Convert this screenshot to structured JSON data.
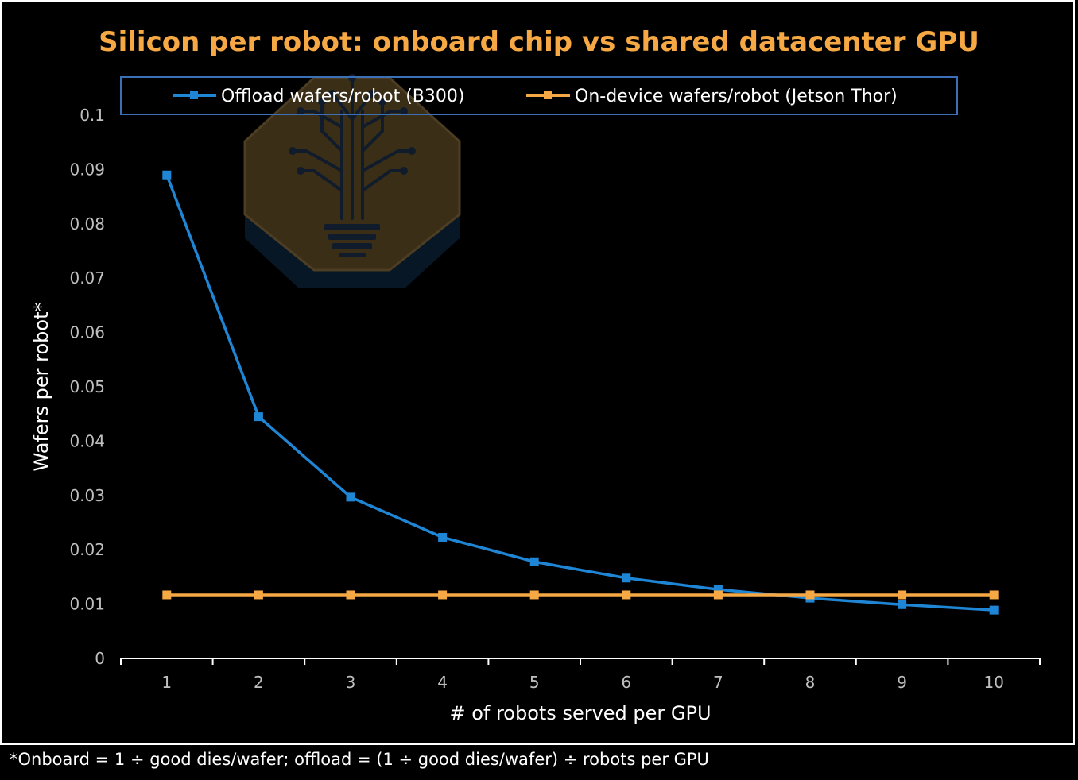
{
  "chart_data": {
    "type": "line",
    "title": "Silicon per robot: onboard chip vs shared datacenter GPU",
    "xlabel": "# of robots served per GPU",
    "ylabel": "Wafers per robot*",
    "categories": [
      "1",
      "2",
      "3",
      "4",
      "5",
      "6",
      "7",
      "8",
      "9",
      "10"
    ],
    "y_ticks": [
      "0",
      "0.01",
      "0.02",
      "0.03",
      "0.04",
      "0.05",
      "0.06",
      "0.07",
      "0.08",
      "0.09",
      "0.1"
    ],
    "ylim": [
      0,
      0.1
    ],
    "grid": false,
    "legend_position": "top",
    "series": [
      {
        "name": "Offload wafers/robot (B300)",
        "color": "#1f86d6",
        "values": [
          0.089,
          0.0445,
          0.0297,
          0.0223,
          0.0178,
          0.0148,
          0.0127,
          0.0111,
          0.0099,
          0.0089
        ]
      },
      {
        "name": "On-device wafers/robot (Jetson Thor)",
        "color": "#f5a843",
        "values": [
          0.0117,
          0.0117,
          0.0117,
          0.0117,
          0.0117,
          0.0117,
          0.0117,
          0.0117,
          0.0117,
          0.0117
        ]
      }
    ],
    "title_color": "#f5a843",
    "axis_color": "#ffffff",
    "tick_label_color": "#bfbfbf",
    "legend_border_color": "#3b6fb6"
  },
  "footnote": "*Onboard = 1 ÷ good dies/wafer; offload = (1 ÷ good dies/wafer) ÷ robots per GPU",
  "watermark": {
    "icon": "circuit-tree-lightbulb-logo-icon"
  }
}
